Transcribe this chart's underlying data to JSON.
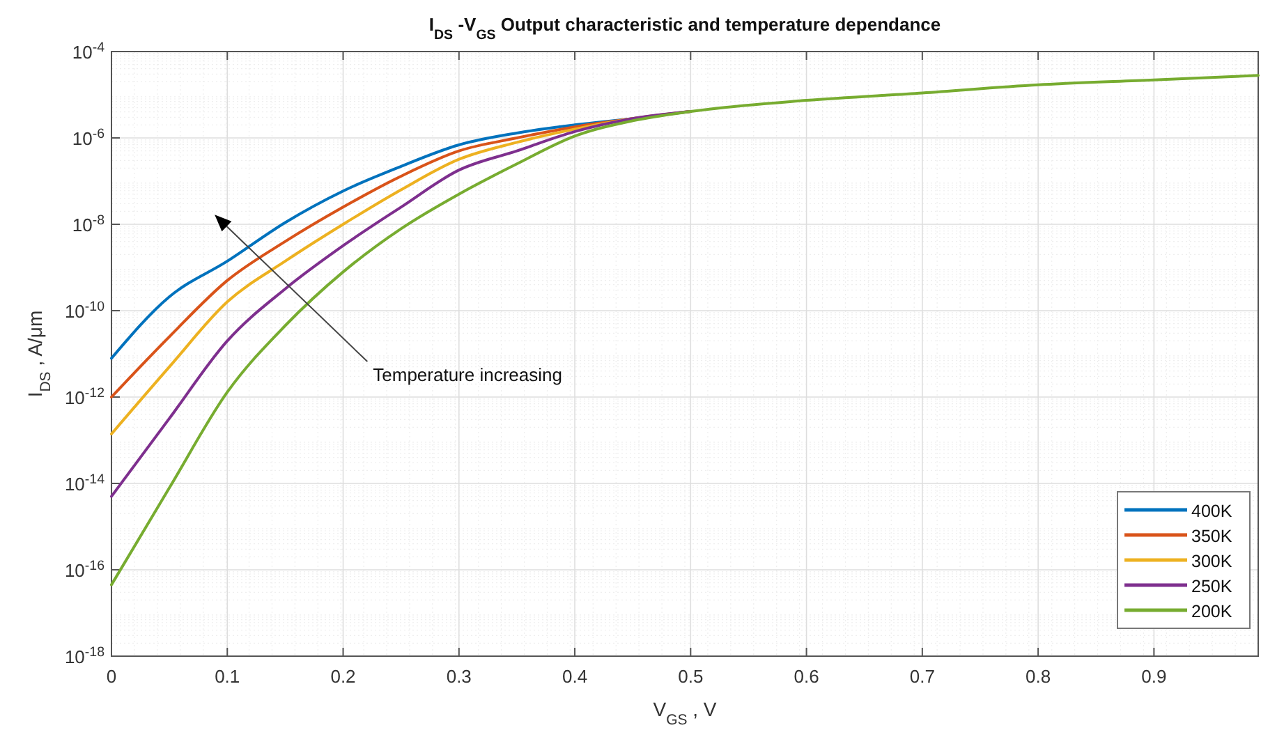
{
  "chart_data": {
    "type": "line",
    "title": "I$_{DS}$-V$_{GS}$ Output characteristic and temperature dependance",
    "xlabel": "V$_{GS}$, V",
    "ylabel": "I$_{DS}$ , A/μm",
    "x": [
      0,
      0.05,
      0.1,
      0.15,
      0.2,
      0.25,
      0.3,
      0.35,
      0.4,
      0.45,
      0.5,
      0.6,
      0.7,
      0.8,
      0.9,
      0.99
    ],
    "series": [
      {
        "name": "400K",
        "color": "#0072bd",
        "values": [
          7.9e-12,
          2.1e-10,
          1.4e-09,
          1.1e-08,
          5.9e-08,
          2.2e-07,
          6.9e-07,
          1.3e-06,
          2e-06,
          2.8e-06,
          4.1e-06,
          null,
          null,
          null,
          null,
          null
        ]
      },
      {
        "name": "350K",
        "color": "#d95319",
        "values": [
          1e-12,
          2.5e-11,
          5e-10,
          4e-09,
          2.5e-08,
          1.3e-07,
          5e-07,
          1e-06,
          1.8e-06,
          2.8e-06,
          4.1e-06,
          null,
          null,
          null,
          null,
          null
        ]
      },
      {
        "name": "300K",
        "color": "#edb120",
        "values": [
          1.4e-13,
          5e-12,
          1.6e-10,
          1.4e-09,
          1e-08,
          6.3e-08,
          3.2e-07,
          7.9e-07,
          1.6e-06,
          2.8e-06,
          4.1e-06,
          null,
          null,
          null,
          null,
          null
        ]
      },
      {
        "name": "250K",
        "color": "#7e2f8e",
        "values": [
          5e-15,
          3.2e-13,
          2e-11,
          3.2e-10,
          3.2e-09,
          2.5e-08,
          1.8e-07,
          5e-07,
          1.4e-06,
          2.8e-06,
          4.1e-06,
          null,
          null,
          null,
          null,
          null
        ]
      },
      {
        "name": "200K",
        "color": "#77ac30",
        "values": [
          4.5e-17,
          7.9e-15,
          1.3e-12,
          4.5e-11,
          7.9e-10,
          7.9e-09,
          5e-08,
          2.5e-07,
          1.1e-06,
          2.5e-06,
          4.1e-06,
          7.4e-06,
          1.1e-05,
          1.7e-05,
          2.2e-05,
          2.8e-05
        ]
      }
    ],
    "xlim": [
      0,
      0.99
    ],
    "xticks": [
      0,
      0.1,
      0.2,
      0.3,
      0.4,
      0.5,
      0.6,
      0.7,
      0.8,
      0.9
    ],
    "ylim": [
      1e-18,
      0.0001
    ],
    "yticks": [
      {
        "value": 1e-18,
        "label": "10$^{-18}$"
      },
      {
        "value": 1e-16,
        "label": "10$^{-16}$"
      },
      {
        "value": 1e-14,
        "label": "10$^{-14}$"
      },
      {
        "value": 1e-12,
        "label": "10$^{-12}$"
      },
      {
        "value": 1e-10,
        "label": "10$^{-10}$"
      },
      {
        "value": 1e-08,
        "label": "10$^{-8}$"
      },
      {
        "value": 1e-06,
        "label": "10$^{-6}$"
      },
      {
        "value": 0.0001,
        "label": "10$^{-4}$"
      }
    ],
    "log": true,
    "grid": true,
    "legend": "bottom right",
    "line_style": "solid",
    "marker": "none",
    "annotations": [
      "Temperature increasing"
    ]
  }
}
